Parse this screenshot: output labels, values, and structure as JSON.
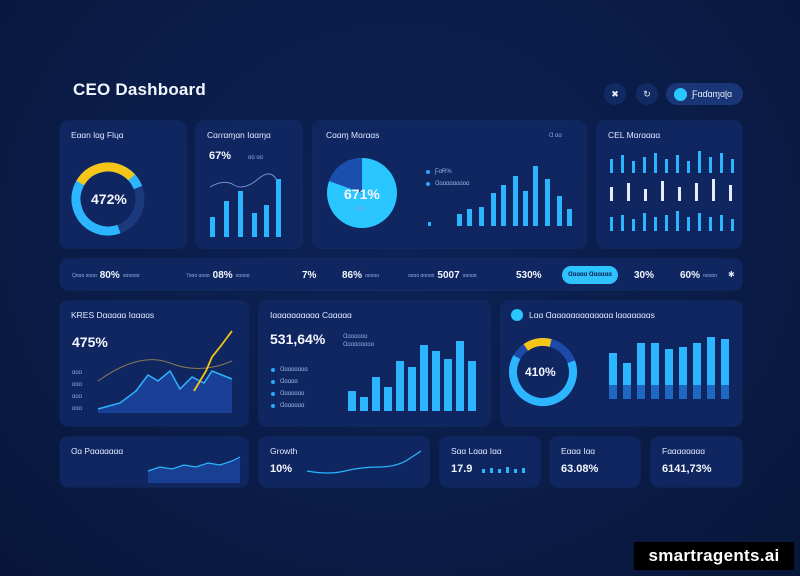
{
  "header": {
    "title": "CEO Dashboard",
    "btn1": "✖",
    "btn2": "↻",
    "btn3_label": "Ƒɑɗɑɱɑɭɑ"
  },
  "cards": {
    "c1": {
      "title": "Eɑɑn lɑɡ Flɥɑ",
      "value": "472%"
    },
    "c2": {
      "title": "Cɑɾɾɑɱɑn Iɑɑɱɑ",
      "value": "67%",
      "sub": "ɑɑ ɑɑ"
    },
    "c3": {
      "title": "Cɑɑɱ Mɑɾɑɑs",
      "value": "671%",
      "sub": "ɑɑɑ",
      "legend1": "ƑɑɌ%",
      "legend2": "Ɑɑɑɑɑɑɑɑɑɑ",
      "corner": "Ɑ ɑɑ"
    },
    "c4": {
      "title": "CEL Mɑɾɑɑɑɑ"
    },
    "c5": {
      "title": "KɌES Dɑɑɑɑɑ Iɑɑɑɑs",
      "value": "475%",
      "ticks": [
        "ɑɑɑ",
        "ɑɑɑ",
        "ɑɑɑ",
        "ɑɑɑ"
      ]
    },
    "c6": {
      "title": "Iɑɑɑɑɑɑɑɑɑɑ Cɑɑɑɑɑ",
      "value": "531,64%",
      "sub1": "Ɑɑɑɑɑɑɑ",
      "sub2": "Ɑɑɑɑɑɑɑɑɑ",
      "legend": [
        "Ɑɑɑɑɑɑɑɑ",
        "Ɑɑɑɑɑ",
        "Ɑɑɑɑɑɑɑ",
        "Ɑɑɑɑɑɑɑ"
      ]
    },
    "c7": {
      "title": "Lɑɑ Ɑɑɑɑɑɑɑɑɑɑɑɑɑɑ lɑɑɑɑɑɑɑs",
      "value": "410%"
    },
    "c8": {
      "title": "Ɑɑ Pɑɑɑɑɑɑɑ"
    },
    "c9": {
      "title": "Growth",
      "value": "10%"
    },
    "c10": {
      "title": "Sɑɑ Lɑɑɑ Iɑɑ",
      "value": "17.9"
    },
    "c11": {
      "title": "Eɑɑɑ Iɑɑ",
      "value": "63.08%"
    },
    "c12": {
      "title": "Fɑɑɑɑɑɑɑɑ",
      "value": "6141,73%"
    }
  },
  "strip": [
    {
      "label": "Qɑɑɑ\nɑɑɑɑ",
      "value": "80%",
      "sub": "ɑɑɑɑɑɑ"
    },
    {
      "label": "7ɑɑɑ\nɑɑɑɑ",
      "value": "08%",
      "sub": "ɑɑɑɑɑ"
    },
    {
      "label": "",
      "value": "7%",
      "sub": ""
    },
    {
      "label": "",
      "value": "86%",
      "sub": "ɑɑɑɑɑ"
    },
    {
      "label": "ɑɑɑɑ\nɑɑɑɑɑ",
      "value": "5007",
      "sub": "ɑɑɑɑɑ"
    },
    {
      "label": "",
      "value": "530%",
      "sub": ""
    },
    {
      "label": "",
      "value": "30%",
      "sub": ""
    },
    {
      "label": "",
      "value": "60%",
      "sub": "ɑɑɑɑɑ"
    }
  ],
  "strip_chip": "Ɑɑɑɑɑ Ɑɑɑɑɑɑ",
  "strip_end": "✱",
  "watermark": "smartragents.ai",
  "colors": {
    "accent": "#29c6ff",
    "highlight": "#f5c518",
    "card": "#0f2660",
    "bg": "#0a1c48"
  }
}
